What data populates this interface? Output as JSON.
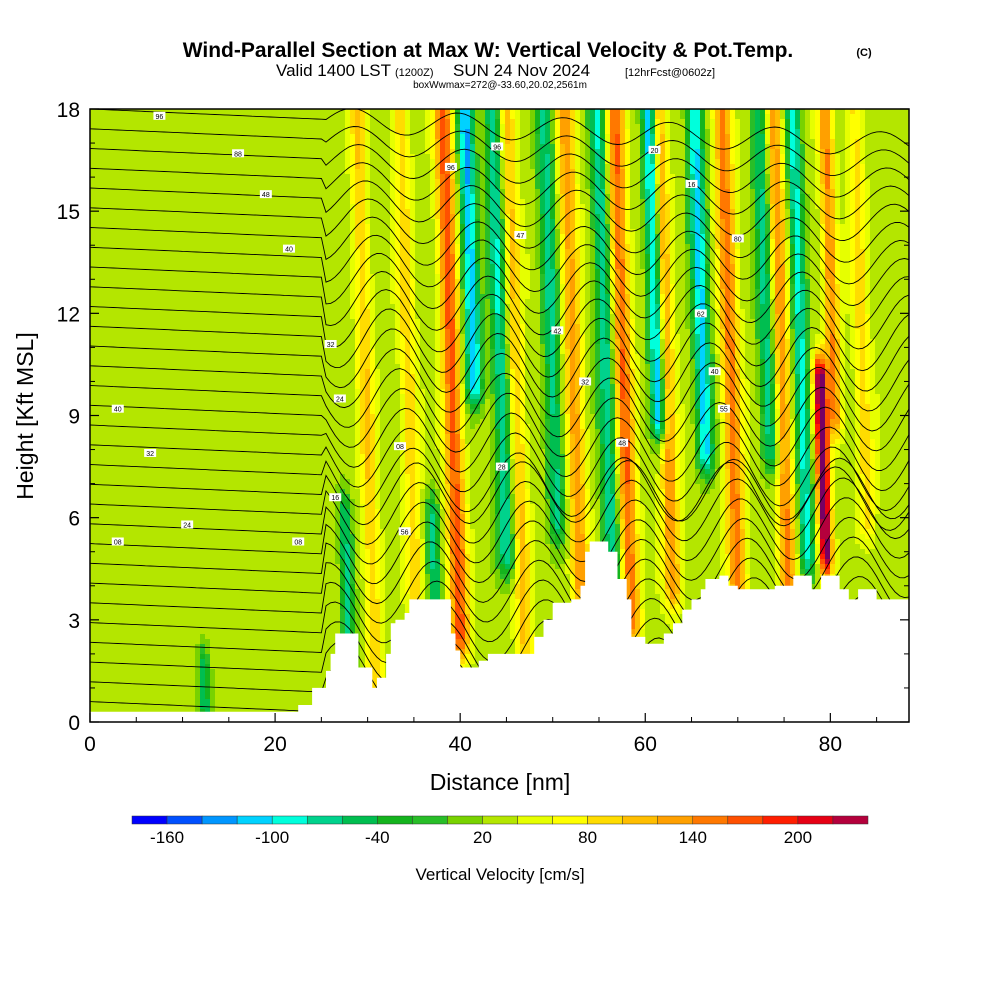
{
  "figure": {
    "title": "Wind-Parallel Section at Max W: Vertical Velocity & Pot.Temp.",
    "copyright": "(C)",
    "valid_main": "Valid 1400 LST",
    "valid_utc": "(1200Z)",
    "valid_date": "SUN 24 Nov 2024",
    "forecast": "[12hrFcst@0602z]",
    "box_info": "boxWwmax=272@-33.60,20.02,2561m"
  },
  "chart_data": {
    "type": "heatmap",
    "title": "Wind-Parallel Section at Max W: Vertical Velocity & Pot.Temp.",
    "xlabel": "Distance [nm]",
    "ylabel": "Height [Kft MSL]",
    "xlim": [
      0,
      88.5
    ],
    "ylim": [
      0,
      18
    ],
    "x_ticks": [
      0,
      20,
      40,
      60,
      80
    ],
    "y_ticks": [
      0,
      3,
      6,
      9,
      12,
      15,
      18
    ],
    "colorbar": {
      "label": "Vertical Velocity [cm/s]",
      "tick_labels": [
        "-160",
        "-100",
        "-40",
        "20",
        "80",
        "140",
        "200"
      ],
      "tick_values": [
        -160,
        -100,
        -40,
        20,
        80,
        140,
        200
      ],
      "bounds": [
        -180,
        -160,
        -140,
        -120,
        -100,
        -80,
        -60,
        -40,
        -20,
        0,
        20,
        40,
        60,
        80,
        100,
        120,
        140,
        160,
        180,
        200,
        220,
        240
      ],
      "colors": [
        "#0000ff",
        "#0050ff",
        "#0096ff",
        "#00d2ff",
        "#00ffdc",
        "#00d28c",
        "#00be50",
        "#14b41e",
        "#28be28",
        "#78d200",
        "#b4e600",
        "#e6ff00",
        "#ffff00",
        "#ffdc00",
        "#ffbe00",
        "#ffa000",
        "#ff7800",
        "#ff5000",
        "#ff1e00",
        "#e60014",
        "#b4003c",
        "#780064"
      ]
    },
    "velocity_field": {
      "background": 30,
      "updrafts": [
        {
          "x": 31,
          "ybot": 0,
          "ytop": 18,
          "amp": 70,
          "w": 0.9
        },
        {
          "x": 35.5,
          "ybot": 1,
          "ytop": 18,
          "amp": 65,
          "w": 0.9
        },
        {
          "x": 40,
          "ybot": 2.5,
          "ytop": 18,
          "amp": 140,
          "w": 1.0
        },
        {
          "x": 47,
          "ybot": 2,
          "ytop": 18,
          "amp": 75,
          "w": 0.9
        },
        {
          "x": 53,
          "ybot": 4,
          "ytop": 18,
          "amp": 100,
          "w": 1.0
        },
        {
          "x": 58.5,
          "ybot": 3,
          "ytop": 18,
          "amp": 130,
          "w": 1.0
        },
        {
          "x": 63,
          "ybot": 4,
          "ytop": 18,
          "amp": 110,
          "w": 0.9
        },
        {
          "x": 70,
          "ybot": 4,
          "ytop": 18,
          "amp": 120,
          "w": 1.0
        },
        {
          "x": 75.5,
          "ybot": 4,
          "ytop": 18,
          "amp": 110,
          "w": 0.9
        },
        {
          "x": 79.5,
          "ybot": 5,
          "ytop": 10,
          "amp": 240,
          "w": 0.7
        },
        {
          "x": 80.5,
          "ybot": 9,
          "ytop": 18,
          "amp": 110,
          "w": 0.8
        },
        {
          "x": 84,
          "ybot": 6,
          "ytop": 18,
          "amp": 60,
          "w": 0.9
        }
      ],
      "downdrafts": [
        {
          "x": 28,
          "ybot": 2,
          "ytop": 6,
          "amp": -100,
          "w": 0.7
        },
        {
          "x": 37.5,
          "ybot": 2,
          "ytop": 6,
          "amp": -90,
          "w": 0.7
        },
        {
          "x": 41.5,
          "ybot": 10,
          "ytop": 18,
          "amp": -150,
          "w": 0.9
        },
        {
          "x": 45,
          "ybot": 5,
          "ytop": 18,
          "amp": -110,
          "w": 0.9
        },
        {
          "x": 50.5,
          "ybot": 6,
          "ytop": 18,
          "amp": -100,
          "w": 0.9
        },
        {
          "x": 56.5,
          "ybot": 4,
          "ytop": 18,
          "amp": -110,
          "w": 0.9
        },
        {
          "x": 61.5,
          "ybot": 9,
          "ytop": 18,
          "amp": -170,
          "w": 0.8
        },
        {
          "x": 66.5,
          "ybot": 8,
          "ytop": 18,
          "amp": -140,
          "w": 0.9
        },
        {
          "x": 73.5,
          "ybot": 8,
          "ytop": 18,
          "amp": -100,
          "w": 0.9
        },
        {
          "x": 77.5,
          "ybot": 5,
          "ytop": 18,
          "amp": -120,
          "w": 0.8
        },
        {
          "x": 12.5,
          "ybot": 0,
          "ytop": 1.5,
          "amp": -80,
          "w": 0.6
        }
      ]
    },
    "terrain_profile": {
      "x": [
        0,
        22.5,
        22.5,
        24,
        25.5,
        26,
        26.5,
        28,
        29,
        30.5,
        31,
        32,
        32.5,
        33,
        34,
        34.5,
        37,
        38,
        39,
        39.5,
        40,
        42,
        43,
        46,
        47,
        48,
        49,
        50,
        52,
        53,
        53.5,
        54,
        56,
        57,
        58,
        58.5,
        60,
        61,
        62,
        63,
        64,
        65,
        66,
        66.5,
        68,
        69,
        70,
        71,
        72,
        73,
        74,
        75,
        76,
        77,
        78,
        79,
        80,
        81,
        82,
        83,
        84,
        85,
        86,
        87,
        88.5
      ],
      "height": [
        0.3,
        0.3,
        0.5,
        1.0,
        1.5,
        2.0,
        2.6,
        2.6,
        1.6,
        1.0,
        1.3,
        2.0,
        2.9,
        3.0,
        3.2,
        3.6,
        3.6,
        3.6,
        2.6,
        2.1,
        1.6,
        1.8,
        2.0,
        2.0,
        2.0,
        2.5,
        3.0,
        3.5,
        3.6,
        4.0,
        5.0,
        5.3,
        5.0,
        4.2,
        3.6,
        2.5,
        2.3,
        2.3,
        2.6,
        2.9,
        3.3,
        3.6,
        3.9,
        4.2,
        4.3,
        4.0,
        3.9,
        3.9,
        3.9,
        3.9,
        4.0,
        4.0,
        4.3,
        4.3,
        3.9,
        4.3,
        4.3,
        3.9,
        3.6,
        3.9,
        3.9,
        3.6,
        3.6,
        3.6,
        3.6
      ]
    },
    "theta_contour_levels": [
      24,
      32,
      40,
      48,
      56,
      64,
      72,
      80,
      88,
      96,
      104,
      112,
      120,
      128,
      136,
      144,
      152,
      160,
      168,
      176,
      184,
      192,
      200,
      208,
      216,
      224,
      232,
      240,
      248,
      256,
      264
    ],
    "theta_labels": [
      {
        "x": 7.5,
        "y": 17.8,
        "text": "96"
      },
      {
        "x": 16,
        "y": 16.7,
        "text": "88"
      },
      {
        "x": 19,
        "y": 15.5,
        "text": "48"
      },
      {
        "x": 21.5,
        "y": 13.9,
        "text": "40"
      },
      {
        "x": 26,
        "y": 11.1,
        "text": "32"
      },
      {
        "x": 27,
        "y": 9.5,
        "text": "24"
      },
      {
        "x": 3,
        "y": 9.2,
        "text": "40"
      },
      {
        "x": 6.5,
        "y": 7.9,
        "text": "32"
      },
      {
        "x": 10.5,
        "y": 5.8,
        "text": "24"
      },
      {
        "x": 3,
        "y": 5.3,
        "text": "08"
      },
      {
        "x": 22.5,
        "y": 5.3,
        "text": "08"
      },
      {
        "x": 26.5,
        "y": 6.6,
        "text": "16"
      },
      {
        "x": 33.5,
        "y": 8.1,
        "text": "08"
      },
      {
        "x": 34,
        "y": 5.6,
        "text": "56"
      },
      {
        "x": 39,
        "y": 16.3,
        "text": "96"
      },
      {
        "x": 44,
        "y": 16.9,
        "text": "96"
      },
      {
        "x": 46.5,
        "y": 14.3,
        "text": "47"
      },
      {
        "x": 50.5,
        "y": 11.5,
        "text": "42"
      },
      {
        "x": 53.5,
        "y": 10.0,
        "text": "32"
      },
      {
        "x": 44.5,
        "y": 7.5,
        "text": "28"
      },
      {
        "x": 57.5,
        "y": 8.2,
        "text": "48"
      },
      {
        "x": 61,
        "y": 16.8,
        "text": "20"
      },
      {
        "x": 65,
        "y": 15.8,
        "text": "16"
      },
      {
        "x": 70,
        "y": 14.2,
        "text": "80"
      },
      {
        "x": 66,
        "y": 12.0,
        "text": "62"
      },
      {
        "x": 67.5,
        "y": 10.3,
        "text": "40"
      },
      {
        "x": 68.5,
        "y": 9.2,
        "text": "55"
      }
    ]
  }
}
